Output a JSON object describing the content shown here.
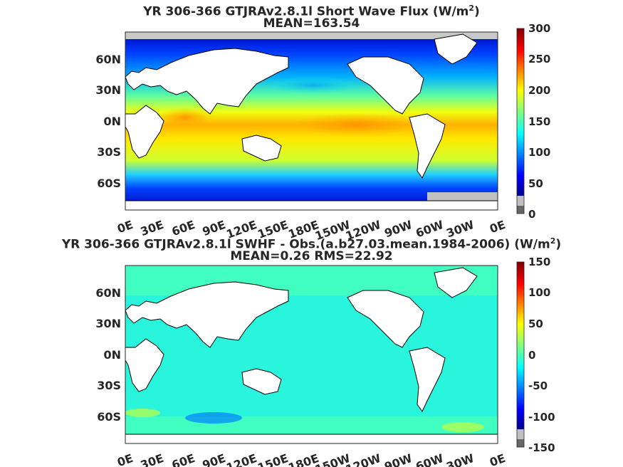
{
  "chart_data": [
    {
      "type": "heatmap",
      "title_line1": "YR 306-366 GTJRAv2.8.1l  Short Wave Flux (W/m",
      "title_sup": "2",
      "title_close": ")",
      "subtitle": "MEAN=163.54",
      "xticks": [
        "0E",
        "30E",
        "60E",
        "90E",
        "120E",
        "150E",
        "180E",
        "150W",
        "120W",
        "90W",
        "60W",
        "30W",
        "0E"
      ],
      "yticks": [
        "60N",
        "30N",
        "0N",
        "30S",
        "60S"
      ],
      "colorbar": {
        "min": 0,
        "max": 300,
        "ticks": [
          "300",
          "250",
          "200",
          "150",
          "100",
          "50",
          "0"
        ]
      },
      "colormap": "jet"
    },
    {
      "type": "heatmap",
      "title_line1": "YR 306-366 GTJRAv2.8.1l SWHF - Obs.(a.b27.03.mean.1984-2006) (W/m",
      "title_sup": "2",
      "title_close": ")",
      "subtitle": "MEAN=0.26 RMS=22.92",
      "xticks": [
        "0E",
        "30E",
        "60E",
        "90E",
        "120E",
        "150E",
        "180E",
        "150W",
        "120W",
        "90W",
        "60W",
        "30W",
        "0E"
      ],
      "yticks": [
        "60N",
        "30N",
        "0N",
        "30S",
        "60S"
      ],
      "colorbar": {
        "min": -150,
        "max": 150,
        "ticks": [
          "150",
          "100",
          "50",
          "0",
          "-50",
          "-100",
          "-150"
        ]
      },
      "colormap": "jet"
    }
  ],
  "colors": {
    "jet": [
      "#00008f",
      "#0000ff",
      "#0080ff",
      "#00ffff",
      "#80ff80",
      "#ffff00",
      "#ff8000",
      "#ff0000",
      "#800000"
    ],
    "missing": "#c8c8c8",
    "land": "#ffffff"
  }
}
